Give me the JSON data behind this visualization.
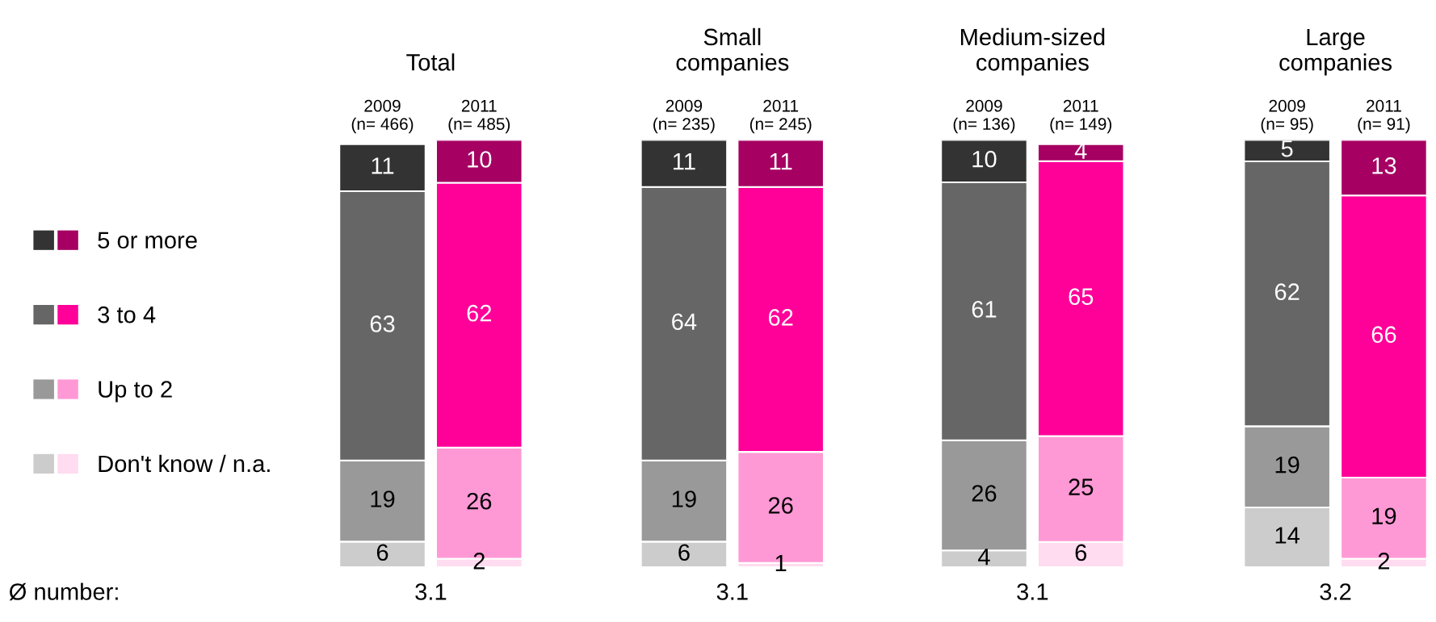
{
  "chart_data": [
    {
      "type": "bar",
      "stacked": true,
      "title": "Total",
      "categories": [
        "2009\n(n= 466)",
        "2011\n(n= 485)"
      ],
      "data_labels": true,
      "legend": "left",
      "annotations": [
        "Ø number:",
        "3.1"
      ],
      "series": [
        {
          "name": "Don't know / n.a.",
          "colors": [
            "#cccccc",
            "#ffdcef"
          ],
          "values": [
            6,
            2
          ]
        },
        {
          "name": "Up to 2",
          "colors": [
            "#999999",
            "#ff99d6"
          ],
          "values": [
            19,
            26
          ]
        },
        {
          "name": "3 to 4",
          "colors": [
            "#666666",
            "#ff0099"
          ],
          "values": [
            63,
            62
          ]
        },
        {
          "name": "5 or more",
          "colors": [
            "#333333",
            "#a50062"
          ],
          "values": [
            11,
            10
          ]
        }
      ]
    },
    {
      "type": "bar",
      "stacked": true,
      "title": "Small\ncompanies",
      "categories": [
        "2009\n(n= 235)",
        "2011\n(n= 245)"
      ],
      "data_labels": true,
      "annotations": [
        "3.1"
      ],
      "series": [
        {
          "colors": [
            "#cccccc",
            "#ffdcef"
          ],
          "values": [
            6,
            1
          ]
        },
        {
          "colors": [
            "#999999",
            "#ff99d6"
          ],
          "values": [
            19,
            26
          ]
        },
        {
          "colors": [
            "#666666",
            "#ff0099"
          ],
          "values": [
            64,
            62
          ]
        },
        {
          "colors": [
            "#333333",
            "#a50062"
          ],
          "values": [
            11,
            11
          ]
        }
      ]
    },
    {
      "type": "bar",
      "stacked": true,
      "title": "Medium-sized\ncompanies",
      "categories": [
        "2009\n(n= 136)",
        "2011\n(n= 149)"
      ],
      "data_labels": true,
      "annotations": [
        "3.1"
      ],
      "series": [
        {
          "colors": [
            "#cccccc",
            "#ffdcef"
          ],
          "values": [
            4,
            6
          ]
        },
        {
          "colors": [
            "#999999",
            "#ff99d6"
          ],
          "values": [
            26,
            25
          ]
        },
        {
          "colors": [
            "#666666",
            "#ff0099"
          ],
          "values": [
            61,
            65
          ]
        },
        {
          "colors": [
            "#333333",
            "#a50062"
          ],
          "values": [
            10,
            4
          ]
        }
      ]
    },
    {
      "type": "bar",
      "stacked": true,
      "title": "Large\ncompanies",
      "categories": [
        "2009\n(n= 95)",
        "2011\n(n= 91)"
      ],
      "data_labels": true,
      "annotations": [
        "3.2"
      ],
      "series": [
        {
          "colors": [
            "#cccccc",
            "#ffdcef"
          ],
          "values": [
            14,
            2
          ]
        },
        {
          "colors": [
            "#999999",
            "#ff99d6"
          ],
          "values": [
            19,
            19
          ]
        },
        {
          "colors": [
            "#666666",
            "#ff0099"
          ],
          "values": [
            62,
            66
          ]
        },
        {
          "colors": [
            "#333333",
            "#a50062"
          ],
          "values": [
            5,
            13
          ]
        }
      ]
    }
  ]
}
